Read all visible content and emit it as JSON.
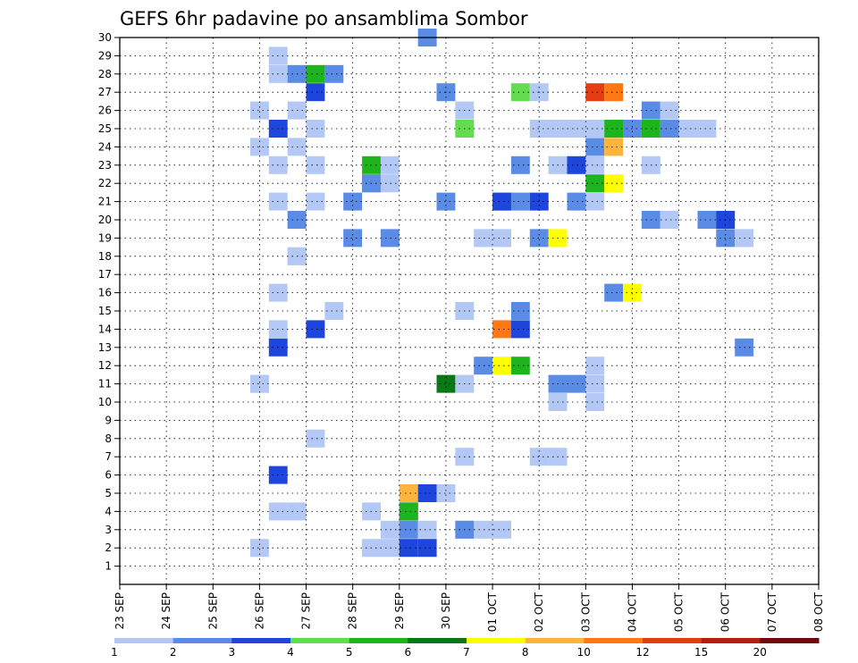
{
  "chart_data": {
    "type": "heatmap",
    "title": "GEFS 6hr padavine po ansamblima Sombor",
    "y_ticks": [
      "1",
      "2",
      "3",
      "4",
      "5",
      "6",
      "7",
      "8",
      "9",
      "10",
      "11",
      "12",
      "13",
      "14",
      "15",
      "16",
      "17",
      "18",
      "19",
      "20",
      "21",
      "22",
      "23",
      "24",
      "25",
      "26",
      "27",
      "28",
      "29",
      "30"
    ],
    "x_ticks": [
      "23 SEP",
      "24 SEP",
      "25 SEP",
      "26 SEP",
      "27 SEP",
      "28 SEP",
      "29 SEP",
      "30 SEP",
      "01 OCT",
      "02 OCT",
      "03 OCT",
      "04 OCT",
      "05 OCT",
      "06 OCT",
      "07 OCT",
      "08 OCT"
    ],
    "xlim": [
      0,
      60
    ],
    "ylim": [
      0,
      30
    ],
    "grid": true,
    "colorbar": {
      "labels": [
        "1",
        "2",
        "3",
        "4",
        "5",
        "6",
        "7",
        "8",
        "10",
        "12",
        "15",
        "20"
      ],
      "colors": [
        "#b4c8f5",
        "#5a8ce6",
        "#1e46dc",
        "#64dc50",
        "#1eb41e",
        "#0a7814",
        "#ffff00",
        "#ffb43c",
        "#ff7814",
        "#e63c14",
        "#b41e0a",
        "#6e0a0a"
      ]
    },
    "cells": [
      [
        16,
        30,
        1
      ],
      [
        8,
        29,
        0
      ],
      [
        8,
        28,
        0
      ],
      [
        9,
        28,
        1
      ],
      [
        10,
        28,
        4
      ],
      [
        11,
        28,
        1
      ],
      [
        10,
        27,
        2
      ],
      [
        17,
        27,
        1
      ],
      [
        21,
        27,
        3
      ],
      [
        22,
        27,
        0
      ],
      [
        25,
        27,
        9
      ],
      [
        26,
        27,
        8
      ],
      [
        7,
        26,
        0
      ],
      [
        9,
        26,
        0
      ],
      [
        18,
        26,
        0
      ],
      [
        28,
        26,
        1
      ],
      [
        29,
        26,
        0
      ],
      [
        8,
        25,
        2
      ],
      [
        10,
        25,
        0
      ],
      [
        18,
        25,
        3
      ],
      [
        22,
        25,
        0
      ],
      [
        23,
        25,
        0
      ],
      [
        24,
        25,
        0
      ],
      [
        25,
        25,
        0
      ],
      [
        26,
        25,
        0
      ],
      [
        26,
        25,
        4
      ],
      [
        27,
        25,
        1
      ],
      [
        28,
        25,
        4
      ],
      [
        29,
        25,
        1
      ],
      [
        30,
        25,
        0
      ],
      [
        31,
        25,
        0
      ],
      [
        7,
        24,
        0
      ],
      [
        9,
        24,
        0
      ],
      [
        25,
        24,
        1
      ],
      [
        26,
        24,
        7
      ],
      [
        8,
        23,
        0
      ],
      [
        10,
        23,
        0
      ],
      [
        13,
        23,
        4
      ],
      [
        14,
        23,
        0
      ],
      [
        21,
        23,
        1
      ],
      [
        23,
        23,
        0
      ],
      [
        24,
        23,
        2
      ],
      [
        25,
        23,
        0
      ],
      [
        28,
        23,
        0
      ],
      [
        13,
        22,
        1
      ],
      [
        13,
        22,
        1
      ],
      [
        14,
        22,
        0
      ],
      [
        25,
        22,
        4
      ],
      [
        26,
        22,
        6
      ],
      [
        8,
        21,
        0
      ],
      [
        10,
        21,
        0
      ],
      [
        12,
        21,
        1
      ],
      [
        17,
        21,
        1
      ],
      [
        20,
        21,
        3
      ],
      [
        20,
        21,
        2
      ],
      [
        21,
        21,
        1
      ],
      [
        22,
        21,
        2
      ],
      [
        24,
        21,
        1
      ],
      [
        25,
        21,
        0
      ],
      [
        9,
        20,
        1
      ],
      [
        28,
        20,
        1
      ],
      [
        29,
        20,
        0
      ],
      [
        31,
        20,
        1
      ],
      [
        32,
        20,
        2
      ],
      [
        12,
        19,
        1
      ],
      [
        14,
        19,
        1
      ],
      [
        19,
        19,
        0
      ],
      [
        20,
        19,
        0
      ],
      [
        22,
        19,
        1
      ],
      [
        23,
        19,
        6
      ],
      [
        32,
        19,
        1
      ],
      [
        33,
        19,
        0
      ],
      [
        9,
        18,
        0
      ],
      [
        9,
        18,
        0
      ],
      [
        8,
        16,
        0
      ],
      [
        26,
        16,
        1
      ],
      [
        27,
        16,
        6
      ],
      [
        11,
        15,
        0
      ],
      [
        18,
        15,
        0
      ],
      [
        21,
        15,
        1
      ],
      [
        8,
        14,
        0
      ],
      [
        10,
        14,
        2
      ],
      [
        20,
        14,
        8
      ],
      [
        21,
        14,
        2
      ],
      [
        8,
        13,
        2
      ],
      [
        33,
        13,
        1
      ],
      [
        19,
        12,
        1
      ],
      [
        20,
        12,
        6
      ],
      [
        21,
        12,
        4
      ],
      [
        25,
        12,
        0
      ],
      [
        7,
        11,
        0
      ],
      [
        7,
        11,
        0
      ],
      [
        17,
        11,
        5
      ],
      [
        18,
        11,
        0
      ],
      [
        23,
        11,
        1
      ],
      [
        24,
        11,
        1
      ],
      [
        25,
        11,
        0
      ],
      [
        23,
        10,
        0
      ],
      [
        25,
        10,
        0
      ],
      [
        10,
        8,
        0
      ],
      [
        18,
        7,
        0
      ],
      [
        22,
        7,
        0
      ],
      [
        23,
        7,
        0
      ],
      [
        8,
        6,
        2
      ],
      [
        15,
        5,
        7
      ],
      [
        16,
        5,
        2
      ],
      [
        17,
        5,
        0
      ],
      [
        8,
        4,
        0
      ],
      [
        9,
        4,
        0
      ],
      [
        13,
        4,
        0
      ],
      [
        15,
        4,
        2
      ],
      [
        15,
        4,
        4
      ],
      [
        14,
        3,
        0
      ],
      [
        15,
        3,
        1
      ],
      [
        16,
        3,
        0
      ],
      [
        18,
        3,
        0
      ],
      [
        18,
        3,
        1
      ],
      [
        19,
        3,
        0
      ],
      [
        20,
        3,
        0
      ],
      [
        7,
        2,
        0
      ],
      [
        13,
        2,
        0
      ],
      [
        14,
        2,
        0
      ],
      [
        15,
        2,
        2
      ],
      [
        16,
        2,
        2
      ]
    ]
  }
}
